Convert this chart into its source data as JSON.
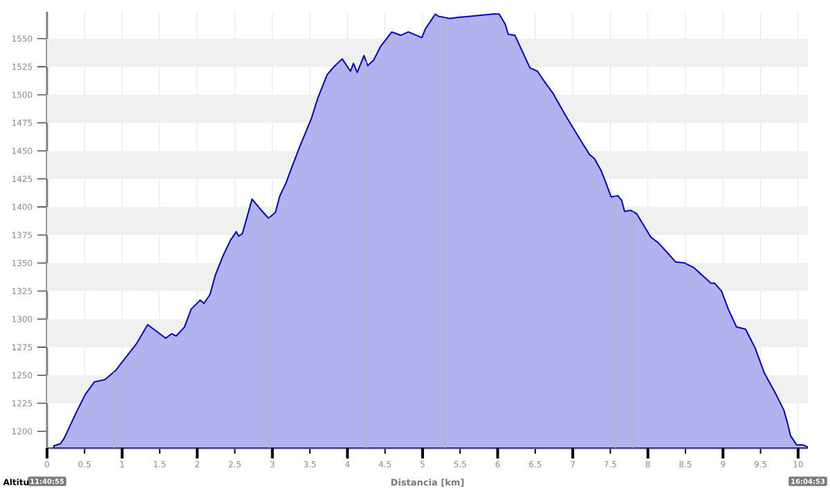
{
  "chart_data": {
    "type": "area",
    "xlabel": "Distancia [km]",
    "ylabel": "Altitu",
    "x": [
      0.09,
      0.18,
      0.23,
      0.39,
      0.51,
      0.63,
      0.77,
      0.91,
      1.05,
      1.19,
      1.34,
      1.46,
      1.58,
      1.66,
      1.72,
      1.83,
      1.92,
      2.04,
      2.09,
      2.17,
      2.24,
      2.34,
      2.44,
      2.52,
      2.55,
      2.6,
      2.73,
      2.84,
      2.95,
      3.04,
      3.1,
      3.18,
      3.24,
      3.36,
      3.52,
      3.61,
      3.73,
      3.82,
      3.93,
      4.04,
      4.08,
      4.13,
      4.22,
      4.27,
      4.35,
      4.44,
      4.59,
      4.71,
      4.81,
      4.99,
      5.04,
      5.17,
      5.21,
      5.36,
      5.48,
      5.64,
      5.94,
      6.02,
      6.1,
      6.14,
      6.23,
      6.43,
      6.53,
      6.62,
      6.74,
      6.9,
      7.09,
      7.22,
      7.29,
      7.38,
      7.45,
      7.51,
      7.6,
      7.65,
      7.69,
      7.77,
      7.85,
      8.04,
      8.14,
      8.37,
      8.49,
      8.61,
      8.84,
      8.89,
      8.98,
      9.07,
      9.18,
      9.3,
      9.43,
      9.55,
      9.69,
      9.81,
      9.86,
      9.9,
      9.98,
      10.06,
      10.13
    ],
    "values": [
      1187,
      1189,
      1194,
      1217,
      1233,
      1244,
      1246,
      1254,
      1266,
      1278,
      1295,
      1289,
      1283,
      1287,
      1285,
      1293,
      1309,
      1317,
      1314,
      1322,
      1339,
      1356,
      1370,
      1378,
      1374,
      1376,
      1407,
      1398,
      1390,
      1395,
      1410,
      1421,
      1432,
      1453,
      1479,
      1498,
      1518,
      1525,
      1532,
      1521,
      1528,
      1520,
      1535,
      1526,
      1531,
      1543,
      1556,
      1553,
      1556,
      1551,
      1559,
      1572,
      1570,
      1568,
      1569,
      1570,
      1572,
      1572,
      1563,
      1554,
      1553,
      1524,
      1521,
      1512,
      1501,
      1482,
      1461,
      1447,
      1443,
      1432,
      1420,
      1409,
      1410,
      1406,
      1396,
      1397,
      1394,
      1373,
      1368,
      1351,
      1350,
      1346,
      1332,
      1332,
      1325,
      1309,
      1293,
      1291,
      1274,
      1252,
      1235,
      1219,
      1207,
      1196,
      1188,
      1188,
      1186
    ],
    "color": "#0000c8",
    "xlim": [
      0,
      10.13
    ],
    "ylim": [
      1185,
      1574
    ],
    "xticks": [
      0,
      0.5,
      1,
      1.5,
      2,
      2.5,
      3,
      3.5,
      4,
      4.5,
      5,
      5.5,
      6,
      6.5,
      7,
      7.5,
      8,
      8.5,
      9,
      9.5,
      10
    ],
    "yticks": [
      1200,
      1225,
      1250,
      1275,
      1300,
      1325,
      1350,
      1375,
      1400,
      1425,
      1450,
      1475,
      1500,
      1525,
      1550
    ],
    "grid": "x",
    "bands": [
      {
        "axis": "y",
        "from": 1225,
        "to": 1250,
        "color": "#f0f0f0"
      },
      {
        "axis": "y",
        "from": 1275,
        "to": 1300,
        "color": "#f0f0f0"
      },
      {
        "axis": "y",
        "from": 1325,
        "to": 1350,
        "color": "#f0f0f0"
      },
      {
        "axis": "y",
        "from": 1375,
        "to": 1400,
        "color": "#f0f0f0"
      },
      {
        "axis": "y",
        "from": 1425,
        "to": 1450,
        "color": "#f0f0f0"
      },
      {
        "axis": "y",
        "from": 1475,
        "to": 1500,
        "color": "#f0f0f0"
      },
      {
        "axis": "y",
        "from": 1525,
        "to": 1550,
        "color": "#f0f0f0"
      }
    ],
    "ref_lines": [
      {
        "axis": "x",
        "value": 0.89,
        "color": "#b4b4b4"
      },
      {
        "axis": "x",
        "value": 2.96,
        "color": "#b4b4b4"
      },
      {
        "axis": "x",
        "value": 4.25,
        "color": "#b4b4b4"
      },
      {
        "axis": "x",
        "value": 5.3,
        "color": "#b4b4b4"
      },
      {
        "axis": "x",
        "value": 7.57,
        "color": "#b4b4b4"
      },
      {
        "axis": "x",
        "value": 7.8,
        "color": "#b4b4b4"
      }
    ],
    "annotations": [
      "11:40:55",
      "16:04:53"
    ]
  }
}
